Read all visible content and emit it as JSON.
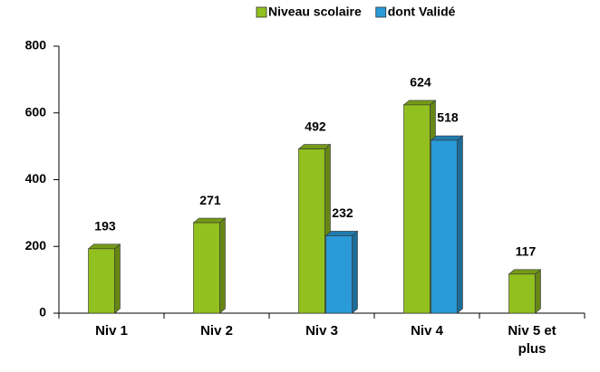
{
  "chart_data": {
    "type": "bar",
    "categories": [
      "Niv 1",
      "Niv 2",
      "Niv 3",
      "Niv 4",
      "Niv 5 et plus"
    ],
    "series": [
      {
        "name": "Niveau scolaire",
        "color": "#92c01f",
        "values": [
          193,
          271,
          492,
          624,
          117
        ]
      },
      {
        "name": "dont Validé",
        "color": "#2a9ad8",
        "values": [
          null,
          null,
          232,
          518,
          null
        ]
      }
    ],
    "ylim": [
      0,
      800
    ],
    "yticks": [
      0,
      200,
      400,
      600,
      800
    ],
    "grid": false,
    "legend": "top"
  }
}
